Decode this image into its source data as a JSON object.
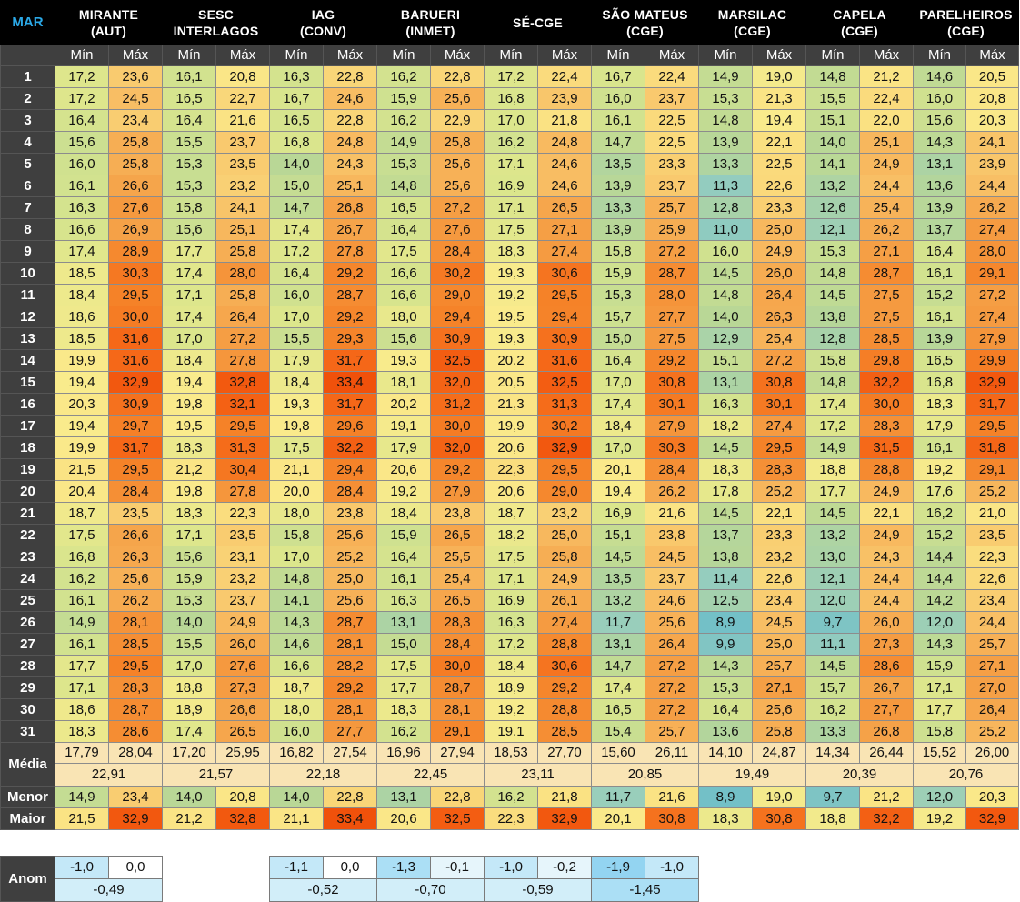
{
  "month_label": "MAR",
  "stations": [
    {
      "name": "MIRANTE",
      "sub": "(AUT)"
    },
    {
      "name": "SESC",
      "sub": "INTERLAGOS"
    },
    {
      "name": "IAG",
      "sub": "(CONV)"
    },
    {
      "name": "BARUERI",
      "sub": "(INMET)"
    },
    {
      "name": "SÉ-CGE",
      "sub": ""
    },
    {
      "name": "SÃO MATEUS",
      "sub": "(CGE)"
    },
    {
      "name": "MARSILAC",
      "sub": "(CGE)"
    },
    {
      "name": "CAPELA",
      "sub": "(CGE)"
    },
    {
      "name": "PARELHEIROS",
      "sub": "(CGE)"
    }
  ],
  "min_label": "Mín",
  "max_label": "Máx",
  "rows": [
    {
      "day": "1",
      "v": [
        "17,2",
        "23,6",
        "16,1",
        "20,8",
        "16,3",
        "22,8",
        "16,2",
        "22,8",
        "17,2",
        "22,4",
        "16,7",
        "22,4",
        "14,9",
        "19,0",
        "14,8",
        "21,2",
        "14,6",
        "20,5"
      ]
    },
    {
      "day": "2",
      "v": [
        "17,2",
        "24,5",
        "16,5",
        "22,7",
        "16,7",
        "24,6",
        "15,9",
        "25,6",
        "16,8",
        "23,9",
        "16,0",
        "23,7",
        "15,3",
        "21,3",
        "15,5",
        "22,4",
        "16,0",
        "20,8"
      ]
    },
    {
      "day": "3",
      "v": [
        "16,4",
        "23,4",
        "16,4",
        "21,6",
        "16,5",
        "22,8",
        "16,2",
        "22,9",
        "17,0",
        "21,8",
        "16,1",
        "22,5",
        "14,8",
        "19,4",
        "15,1",
        "22,0",
        "15,6",
        "20,3"
      ]
    },
    {
      "day": "4",
      "v": [
        "15,6",
        "25,8",
        "15,5",
        "23,7",
        "16,8",
        "24,8",
        "14,9",
        "25,8",
        "16,2",
        "24,8",
        "14,7",
        "22,5",
        "13,9",
        "22,1",
        "14,0",
        "25,1",
        "14,3",
        "24,1"
      ]
    },
    {
      "day": "5",
      "v": [
        "16,0",
        "25,8",
        "15,3",
        "23,5",
        "14,0",
        "24,3",
        "15,3",
        "25,6",
        "17,1",
        "24,6",
        "13,5",
        "23,3",
        "13,3",
        "22,5",
        "14,1",
        "24,9",
        "13,1",
        "23,9"
      ]
    },
    {
      "day": "6",
      "v": [
        "16,1",
        "26,6",
        "15,3",
        "23,2",
        "15,0",
        "25,1",
        "14,8",
        "25,6",
        "16,9",
        "24,6",
        "13,9",
        "23,7",
        "11,3",
        "22,6",
        "13,2",
        "24,4",
        "13,6",
        "24,4"
      ]
    },
    {
      "day": "7",
      "v": [
        "16,3",
        "27,6",
        "15,8",
        "24,1",
        "14,7",
        "26,8",
        "16,5",
        "27,2",
        "17,1",
        "26,5",
        "13,3",
        "25,7",
        "12,8",
        "23,3",
        "12,6",
        "25,4",
        "13,9",
        "26,2"
      ]
    },
    {
      "day": "8",
      "v": [
        "16,6",
        "26,9",
        "15,6",
        "25,1",
        "17,4",
        "26,7",
        "16,4",
        "27,6",
        "17,5",
        "27,1",
        "13,9",
        "25,9",
        "11,0",
        "25,0",
        "12,1",
        "26,2",
        "13,7",
        "27,4"
      ]
    },
    {
      "day": "9",
      "v": [
        "17,4",
        "28,9",
        "17,7",
        "25,8",
        "17,2",
        "27,8",
        "17,5",
        "28,4",
        "18,3",
        "27,4",
        "15,8",
        "27,2",
        "16,0",
        "24,9",
        "15,3",
        "27,1",
        "16,4",
        "28,0"
      ]
    },
    {
      "day": "10",
      "v": [
        "18,5",
        "30,3",
        "17,4",
        "28,0",
        "16,4",
        "29,2",
        "16,6",
        "30,2",
        "19,3",
        "30,6",
        "15,9",
        "28,7",
        "14,5",
        "26,0",
        "14,8",
        "28,7",
        "16,1",
        "29,1"
      ]
    },
    {
      "day": "11",
      "v": [
        "18,4",
        "29,5",
        "17,1",
        "25,8",
        "16,0",
        "28,7",
        "16,6",
        "29,0",
        "19,2",
        "29,5",
        "15,3",
        "28,0",
        "14,8",
        "26,4",
        "14,5",
        "27,5",
        "15,2",
        "27,2"
      ]
    },
    {
      "day": "12",
      "v": [
        "18,6",
        "30,0",
        "17,4",
        "26,4",
        "17,0",
        "29,2",
        "18,0",
        "29,4",
        "19,5",
        "29,4",
        "15,7",
        "27,7",
        "14,0",
        "26,3",
        "13,8",
        "27,5",
        "16,1",
        "27,4"
      ]
    },
    {
      "day": "13",
      "v": [
        "18,5",
        "31,6",
        "17,0",
        "27,2",
        "15,5",
        "29,3",
        "15,6",
        "30,9",
        "19,3",
        "30,9",
        "15,0",
        "27,5",
        "12,9",
        "25,4",
        "12,8",
        "28,5",
        "13,9",
        "27,9"
      ]
    },
    {
      "day": "14",
      "v": [
        "19,9",
        "31,6",
        "18,4",
        "27,8",
        "17,9",
        "31,7",
        "19,3",
        "32,5",
        "20,2",
        "31,6",
        "16,4",
        "29,2",
        "15,1",
        "27,2",
        "15,8",
        "29,8",
        "16,5",
        "29,9"
      ]
    },
    {
      "day": "15",
      "v": [
        "19,4",
        "32,9",
        "19,4",
        "32,8",
        "18,4",
        "33,4",
        "18,1",
        "32,0",
        "20,5",
        "32,5",
        "17,0",
        "30,8",
        "13,1",
        "30,8",
        "14,8",
        "32,2",
        "16,8",
        "32,9"
      ]
    },
    {
      "day": "16",
      "v": [
        "20,3",
        "30,9",
        "19,8",
        "32,1",
        "19,3",
        "31,7",
        "20,2",
        "31,2",
        "21,3",
        "31,3",
        "17,4",
        "30,1",
        "16,3",
        "30,1",
        "17,4",
        "30,0",
        "18,3",
        "31,7"
      ]
    },
    {
      "day": "17",
      "v": [
        "19,4",
        "29,7",
        "19,5",
        "29,5",
        "19,8",
        "29,6",
        "19,1",
        "30,0",
        "19,9",
        "30,2",
        "18,4",
        "27,9",
        "18,2",
        "27,4",
        "17,2",
        "28,3",
        "17,9",
        "29,5"
      ]
    },
    {
      "day": "18",
      "v": [
        "19,9",
        "31,7",
        "18,3",
        "31,3",
        "17,5",
        "32,2",
        "17,9",
        "32,0",
        "20,6",
        "32,9",
        "17,0",
        "30,3",
        "14,5",
        "29,5",
        "14,9",
        "31,5",
        "16,1",
        "31,8"
      ]
    },
    {
      "day": "19",
      "v": [
        "21,5",
        "29,5",
        "21,2",
        "30,4",
        "21,1",
        "29,4",
        "20,6",
        "29,2",
        "22,3",
        "29,5",
        "20,1",
        "28,4",
        "18,3",
        "28,3",
        "18,8",
        "28,8",
        "19,2",
        "29,1"
      ]
    },
    {
      "day": "20",
      "v": [
        "20,4",
        "28,4",
        "19,8",
        "27,8",
        "20,0",
        "28,4",
        "19,2",
        "27,9",
        "20,6",
        "29,0",
        "19,4",
        "26,2",
        "17,8",
        "25,2",
        "17,7",
        "24,9",
        "17,6",
        "25,2"
      ]
    },
    {
      "day": "21",
      "v": [
        "18,7",
        "23,5",
        "18,3",
        "22,3",
        "18,0",
        "23,8",
        "18,4",
        "23,8",
        "18,7",
        "23,2",
        "16,9",
        "21,6",
        "14,5",
        "22,1",
        "14,5",
        "22,1",
        "16,2",
        "21,0"
      ]
    },
    {
      "day": "22",
      "v": [
        "17,5",
        "26,6",
        "17,1",
        "23,5",
        "15,8",
        "25,6",
        "15,9",
        "26,5",
        "18,2",
        "25,0",
        "15,1",
        "23,8",
        "13,7",
        "23,3",
        "13,2",
        "24,9",
        "15,2",
        "23,5"
      ]
    },
    {
      "day": "23",
      "v": [
        "16,8",
        "26,3",
        "15,6",
        "23,1",
        "17,0",
        "25,2",
        "16,4",
        "25,5",
        "17,5",
        "25,8",
        "14,5",
        "24,5",
        "13,8",
        "23,2",
        "13,0",
        "24,3",
        "14,4",
        "22,3"
      ]
    },
    {
      "day": "24",
      "v": [
        "16,2",
        "25,6",
        "15,9",
        "23,2",
        "14,8",
        "25,0",
        "16,1",
        "25,4",
        "17,1",
        "24,9",
        "13,5",
        "23,7",
        "11,4",
        "22,6",
        "12,1",
        "24,4",
        "14,4",
        "22,6"
      ]
    },
    {
      "day": "25",
      "v": [
        "16,1",
        "26,2",
        "15,3",
        "23,7",
        "14,1",
        "25,6",
        "16,3",
        "26,5",
        "16,9",
        "26,1",
        "13,2",
        "24,6",
        "12,5",
        "23,4",
        "12,0",
        "24,4",
        "14,2",
        "23,4"
      ]
    },
    {
      "day": "26",
      "v": [
        "14,9",
        "28,1",
        "14,0",
        "24,9",
        "14,3",
        "28,7",
        "13,1",
        "28,3",
        "16,3",
        "27,4",
        "11,7",
        "25,6",
        "8,9",
        "24,5",
        "9,7",
        "26,0",
        "12,0",
        "24,4"
      ]
    },
    {
      "day": "27",
      "v": [
        "16,1",
        "28,5",
        "15,5",
        "26,0",
        "14,6",
        "28,1",
        "15,0",
        "28,4",
        "17,2",
        "28,8",
        "13,1",
        "26,4",
        "9,9",
        "25,0",
        "11,1",
        "27,3",
        "14,3",
        "25,7"
      ]
    },
    {
      "day": "28",
      "v": [
        "17,7",
        "29,5",
        "17,0",
        "27,6",
        "16,6",
        "28,2",
        "17,5",
        "30,0",
        "18,4",
        "30,6",
        "14,7",
        "27,2",
        "14,3",
        "25,7",
        "14,5",
        "28,6",
        "15,9",
        "27,1"
      ]
    },
    {
      "day": "29",
      "v": [
        "17,1",
        "28,3",
        "18,8",
        "27,3",
        "18,7",
        "29,2",
        "17,7",
        "28,7",
        "18,9",
        "29,2",
        "17,4",
        "27,2",
        "15,3",
        "27,1",
        "15,7",
        "26,7",
        "17,1",
        "27,0"
      ]
    },
    {
      "day": "30",
      "v": [
        "18,6",
        "28,7",
        "18,9",
        "26,6",
        "18,0",
        "28,1",
        "18,3",
        "28,1",
        "19,2",
        "28,8",
        "16,5",
        "27,2",
        "16,4",
        "25,6",
        "16,2",
        "27,7",
        "17,7",
        "26,4"
      ]
    },
    {
      "day": "31",
      "v": [
        "18,3",
        "28,6",
        "17,4",
        "26,5",
        "16,0",
        "27,7",
        "16,2",
        "29,1",
        "19,1",
        "28,5",
        "15,4",
        "25,7",
        "13,6",
        "25,8",
        "13,3",
        "26,8",
        "15,8",
        "25,2"
      ]
    }
  ],
  "media": {
    "label": "Média",
    "v": [
      "17,79",
      "28,04",
      "17,20",
      "25,95",
      "16,82",
      "27,54",
      "16,96",
      "27,94",
      "18,53",
      "27,70",
      "15,60",
      "26,11",
      "14,10",
      "24,87",
      "14,34",
      "26,44",
      "15,52",
      "26,00"
    ],
    "overall": [
      "22,91",
      "21,57",
      "22,18",
      "22,45",
      "23,11",
      "20,85",
      "19,49",
      "20,39",
      "20,76"
    ]
  },
  "menor": {
    "label": "Menor",
    "v": [
      "14,9",
      "23,4",
      "14,0",
      "20,8",
      "14,0",
      "22,8",
      "13,1",
      "22,8",
      "16,2",
      "21,8",
      "11,7",
      "21,6",
      "8,9",
      "19,0",
      "9,7",
      "21,2",
      "12,0",
      "20,3"
    ]
  },
  "maior": {
    "label": "Maior",
    "v": [
      "21,5",
      "32,9",
      "21,2",
      "32,8",
      "21,1",
      "33,4",
      "20,6",
      "32,5",
      "22,3",
      "32,9",
      "20,1",
      "30,8",
      "18,3",
      "30,8",
      "18,8",
      "32,2",
      "19,2",
      "32,9"
    ]
  },
  "anom": {
    "label": "Anom",
    "mirante": {
      "min": "-1,0",
      "max": "0,0",
      "mean": "-0,49"
    },
    "iag": {
      "min": "-1,1",
      "max": "0,0",
      "mean": "-0,52"
    },
    "barueri": {
      "min": "-1,3",
      "max": "-0,1",
      "mean": "-0,70"
    },
    "se": {
      "min": "-1,0",
      "max": "-0,2",
      "mean": "-0,59"
    },
    "sao_mateus": {
      "min": "-1,9",
      "max": "-1,0",
      "mean": "-1,45"
    }
  }
}
